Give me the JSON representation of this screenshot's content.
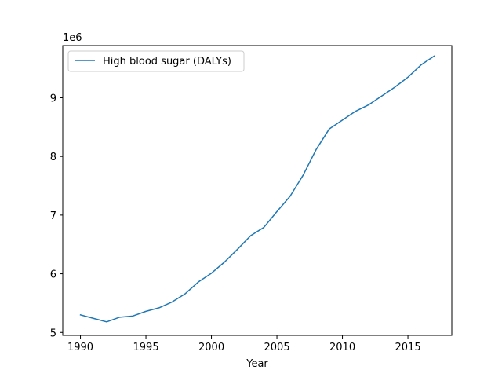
{
  "chart_data": {
    "type": "line",
    "title": "",
    "xlabel": "Year",
    "ylabel": "",
    "y_offset_label": "1e6",
    "y_multiplier": 1000000,
    "xlim": [
      1988.65,
      2018.35
    ],
    "ylim": [
      4950000,
      9890000
    ],
    "x_ticks": [
      1990,
      1995,
      2000,
      2005,
      2010,
      2015
    ],
    "y_ticks": [
      5000000,
      6000000,
      7000000,
      8000000,
      9000000
    ],
    "grid": false,
    "legend_position": "top-left",
    "line_color": "#1f77b4",
    "series": [
      {
        "name": "High blood sugar (DALYs)",
        "x": [
          1990,
          1991,
          1992,
          1993,
          1994,
          1995,
          1996,
          1997,
          1998,
          1999,
          2000,
          2001,
          2002,
          2003,
          2004,
          2005,
          2006,
          2007,
          2008,
          2009,
          2010,
          2011,
          2012,
          2013,
          2014,
          2015,
          2016,
          2017
        ],
        "values": [
          5300000,
          5240000,
          5180000,
          5260000,
          5280000,
          5360000,
          5420000,
          5520000,
          5660000,
          5860000,
          6010000,
          6200000,
          6420000,
          6650000,
          6790000,
          7060000,
          7320000,
          7680000,
          8120000,
          8470000,
          8620000,
          8770000,
          8880000,
          9030000,
          9180000,
          9350000,
          9560000,
          9710000
        ]
      }
    ]
  }
}
